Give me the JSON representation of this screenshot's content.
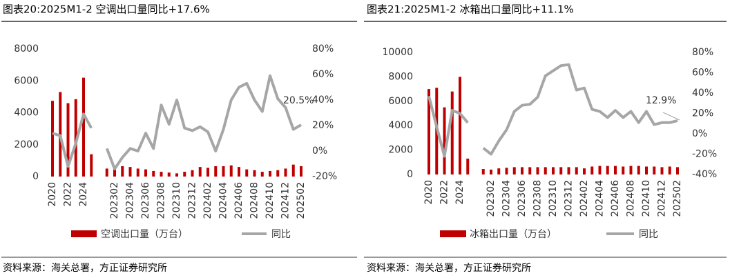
{
  "chart_data": [
    {
      "type": "bar",
      "title": "图表20:2025M1-2 空调出口量同比+17.6%",
      "source": "资料来源：海关总署，方正证券研究所",
      "annotation": "20.5%",
      "categories": [
        "2020",
        null,
        "2022",
        null,
        "2024",
        null,
        null,
        null,
        "202302",
        null,
        "202304",
        null,
        "202306",
        null,
        "202308",
        null,
        "202310",
        null,
        "202312",
        null,
        "202402",
        null,
        "202404",
        null,
        "202406",
        null,
        "202408",
        null,
        "202410",
        null,
        "202412",
        null,
        "202502"
      ],
      "series": [
        {
          "name": "空调出口量（万台）",
          "type": "bar",
          "color": "#c00000",
          "values": [
            4750,
            5300,
            4600,
            4850,
            6200,
            1400,
            null,
            500,
            450,
            650,
            600,
            500,
            450,
            350,
            300,
            250,
            200,
            300,
            400,
            600,
            550,
            650,
            650,
            700,
            600,
            450,
            400,
            300,
            350,
            400,
            500,
            750,
            650
          ]
        },
        {
          "name": "同比",
          "type": "line",
          "axis": "y2",
          "color": "#a6a6a6",
          "values": [
            14,
            12,
            -12,
            6,
            29,
            18,
            null,
            2,
            -14,
            -5,
            2,
            0,
            14,
            2,
            36,
            21,
            40,
            18,
            16,
            19,
            15,
            0,
            17,
            40,
            50,
            53,
            40,
            31,
            59,
            41,
            34,
            17,
            20.5
          ]
        }
      ],
      "ylim": [
        0,
        8000
      ],
      "yticks": [
        0,
        2000,
        4000,
        6000,
        8000
      ],
      "y2lim": [
        -20,
        80
      ],
      "y2ticks": [
        {
          "value": -20,
          "label": "-20%"
        },
        {
          "value": 0,
          "label": "0%"
        },
        {
          "value": 20,
          "label": "20%"
        },
        {
          "value": 40,
          "label": "40%"
        },
        {
          "value": 60,
          "label": "60%"
        },
        {
          "value": 80,
          "label": "80%"
        }
      ]
    },
    {
      "type": "bar",
      "title": "图表21:2025M1-2 冰箱出口量同比+11.1%",
      "source": "资料来源：海关总署，方正证券研究所",
      "annotation": "12.9%",
      "categories": [
        "2020",
        null,
        "2022",
        null,
        "2024",
        null,
        null,
        null,
        "202302",
        null,
        "202304",
        null,
        "202306",
        null,
        "202308",
        null,
        "202310",
        null,
        "202312",
        null,
        "202402",
        null,
        "202404",
        null,
        "202406",
        null,
        "202408",
        null,
        "202410",
        null,
        "202412",
        null,
        "202502"
      ],
      "series": [
        {
          "name": "冰箱出口量（万台）",
          "type": "bar",
          "color": "#c00000",
          "values": [
            7000,
            7100,
            5500,
            6800,
            8000,
            1300,
            null,
            450,
            400,
            500,
            550,
            600,
            600,
            600,
            600,
            600,
            600,
            600,
            600,
            600,
            500,
            650,
            700,
            700,
            700,
            650,
            700,
            700,
            650,
            650,
            600,
            650,
            600
          ]
        },
        {
          "name": "同比",
          "type": "line",
          "axis": "y2",
          "color": "#a6a6a6",
          "values": [
            37,
            7,
            -22,
            23,
            20,
            11,
            null,
            -14,
            -20,
            -7,
            4,
            22,
            28,
            29,
            36,
            57,
            62,
            67,
            68,
            43,
            45,
            24,
            22,
            16,
            23,
            16,
            22,
            11,
            22,
            9,
            11,
            11,
            12.9
          ]
        }
      ],
      "ylim": [
        0,
        10000
      ],
      "yticks": [
        0,
        2000,
        4000,
        6000,
        8000,
        10000
      ],
      "y2lim": [
        -40,
        80
      ],
      "y2ticks": [
        {
          "value": -40,
          "label": "-40%"
        },
        {
          "value": -20,
          "label": "-20%"
        },
        {
          "value": 0,
          "label": "0%"
        },
        {
          "value": 20,
          "label": "20%"
        },
        {
          "value": 40,
          "label": "40%"
        },
        {
          "value": 60,
          "label": "60%"
        },
        {
          "value": 80,
          "label": "80%"
        }
      ]
    }
  ]
}
